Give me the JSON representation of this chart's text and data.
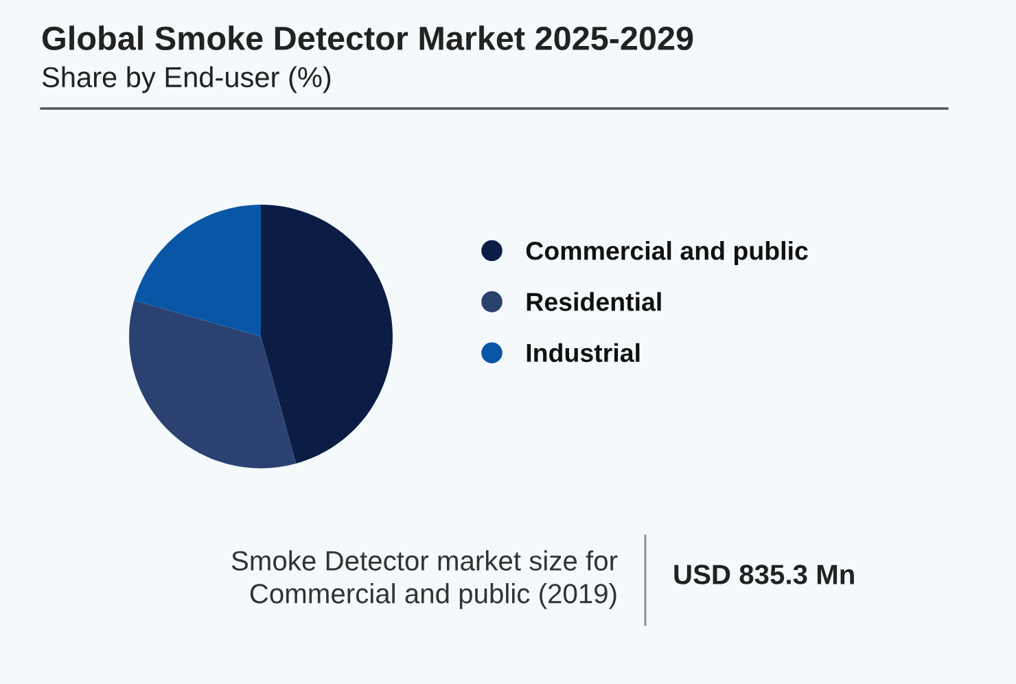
{
  "chart_data": {
    "type": "pie",
    "title": "Global Smoke Detector Market 2025-2029",
    "subtitle": "Share by End-user (%)",
    "categories": [
      "Commercial and public",
      "Residential",
      "Industrial"
    ],
    "values": [
      45.7,
      33.7,
      20.6
    ],
    "colors": [
      "#0b1d45",
      "#2b4170",
      "#0a56a6"
    ],
    "legend": "right",
    "annotations": [
      "Smoke Detector market size for\nCommercial and public (2019)",
      "USD 835.3 Mn"
    ]
  }
}
